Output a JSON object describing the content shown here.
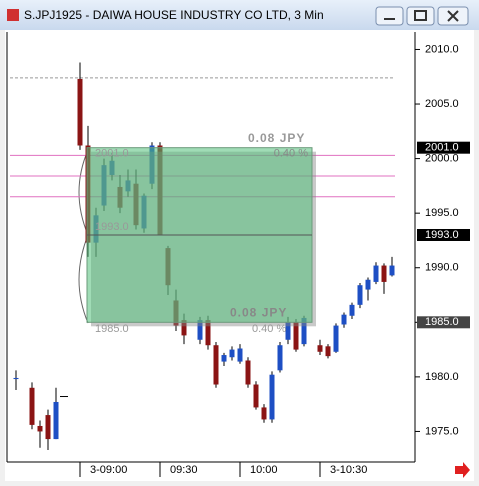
{
  "chart_data": {
    "type": "candlestick",
    "title": "S.JPJ1925 - DAIWA HOUSE INDUSTRY CO LTD, 3 Min",
    "categories": [
      null,
      null,
      null,
      null,
      null,
      null,
      null,
      null,
      "3-09:00",
      null,
      null,
      null,
      null,
      null,
      null,
      null,
      null,
      null,
      "09:30",
      null,
      null,
      null,
      null,
      null,
      null,
      null,
      null,
      null,
      "10:00",
      null,
      null,
      null,
      null,
      null,
      null,
      null,
      null,
      null,
      "3-10:30",
      null,
      null,
      null,
      null,
      null,
      null,
      null,
      null,
      null
    ],
    "open": [
      1979.8,
      null,
      1979.0,
      1975.5,
      1976.5,
      1974.3,
      1978.2,
      null,
      2007.3,
      2001.2,
      1992.3,
      1995.7,
      1998.5,
      1997.4,
      1997.0,
      1997.7,
      1993.6,
      1997.7,
      2001.2,
      1991.8,
      1987.0,
      1985.2,
      null,
      1983.4,
      1985.2,
      1982.9,
      1981.4,
      1981.8,
      1981.4,
      1981.5,
      1979.3,
      1977.2,
      1976.1,
      1980.6,
      1983.4,
      1985.0,
      1983.0,
      null,
      1982.9,
      1982.8,
      1982.3,
      1984.8,
      1985.6,
      1986.6,
      1988.0,
      1988.7,
      1990.2,
      1989.3
    ],
    "high": [
      1980.6,
      null,
      1979.5,
      1976.0,
      1977.0,
      1979.0,
      1978.2,
      null,
      2008.8,
      2003.0,
      1995.5,
      2000.0,
      2000.5,
      1998.5,
      1999.0,
      1999.0,
      1996.8,
      2001.5,
      2001.5,
      1992.0,
      1988.0,
      1985.8,
      null,
      1985.5,
      1985.6,
      1983.2,
      1982.2,
      1982.8,
      1983.0,
      1981.8,
      1979.6,
      1977.5,
      1980.5,
      1983.2,
      1985.5,
      1985.3,
      1985.6,
      null,
      1983.4,
      1983.0,
      1984.9,
      1985.9,
      1986.8,
      1988.6,
      1989.1,
      1990.5,
      1990.4,
      1991.0
    ],
    "low": [
      1978.8,
      null,
      1975.2,
      1973.5,
      1973.3,
      1974.3,
      1978.2,
      null,
      2000.8,
      1991.0,
      1991.0,
      1995.2,
      1998.0,
      1995.0,
      1996.5,
      1993.5,
      1993.2,
      1997.2,
      1993.0,
      1987.5,
      1984.2,
      1983.0,
      null,
      1983.0,
      1982.5,
      1979.0,
      1981.0,
      1981.5,
      1981.2,
      1979.0,
      1977.0,
      1975.8,
      1975.8,
      1980.4,
      1983.0,
      1982.3,
      1982.8,
      null,
      1982.0,
      1981.7,
      1982.2,
      1984.5,
      1985.3,
      1986.3,
      1987.0,
      1988.5,
      1987.6,
      1989.2
    ],
    "close": [
      1979.9,
      null,
      1975.6,
      1975.0,
      1974.3,
      1977.7,
      1978.2,
      null,
      2001.2,
      1992.3,
      1994.8,
      1999.4,
      1999.8,
      1995.5,
      1998.0,
      1993.9,
      1996.6,
      2001.2,
      1993.0,
      1988.4,
      1984.7,
      1983.8,
      null,
      1985.2,
      1982.9,
      1979.3,
      1982.0,
      1982.5,
      1982.6,
      1979.3,
      1977.2,
      1976.1,
      1980.2,
      1982.9,
      1985.0,
      1982.5,
      1985.4,
      null,
      1982.3,
      1981.9,
      1984.7,
      1985.7,
      1986.6,
      1988.4,
      1988.9,
      1990.2,
      1988.7,
      1990.2
    ],
    "up_color": "#1e4fc4",
    "down_color": "#8b1414",
    "ylim": [
      1972.2,
      2011.6
    ],
    "yticks": [
      {
        "value": 1975,
        "label": "1975.0"
      },
      {
        "value": 1980,
        "label": "1980.0"
      },
      {
        "value": 1985,
        "label": "1985.0"
      },
      {
        "value": 1990,
        "label": "1990.0"
      },
      {
        "value": 1995,
        "label": "1995.0"
      },
      {
        "value": 2000,
        "label": "2000.0"
      },
      {
        "value": 2005,
        "label": "2005.0"
      },
      {
        "value": 2010,
        "label": "2010.0"
      }
    ],
    "price_markers": [
      {
        "value": 2001,
        "label": "2001.0"
      },
      {
        "value": 1993,
        "label": "1993.0"
      },
      {
        "value": 1985,
        "label": "1985.0"
      }
    ],
    "hlines": [
      {
        "value": 2007.4,
        "color": "#999999"
      },
      {
        "value": 2000.3,
        "color": "#e070c0"
      },
      {
        "value": 1998.4,
        "color": "#e070c0"
      },
      {
        "value": 1996.5,
        "color": "#e070c0"
      }
    ],
    "box": {
      "top": 2001,
      "middle": 1993,
      "bottom": 1985,
      "color": "#52c07a",
      "labels": [
        "0.08 JPY",
        "0.40 %",
        "2001.0",
        "1993.0",
        "1985.0",
        "0.08 JPY",
        "0.40 %"
      ]
    }
  }
}
